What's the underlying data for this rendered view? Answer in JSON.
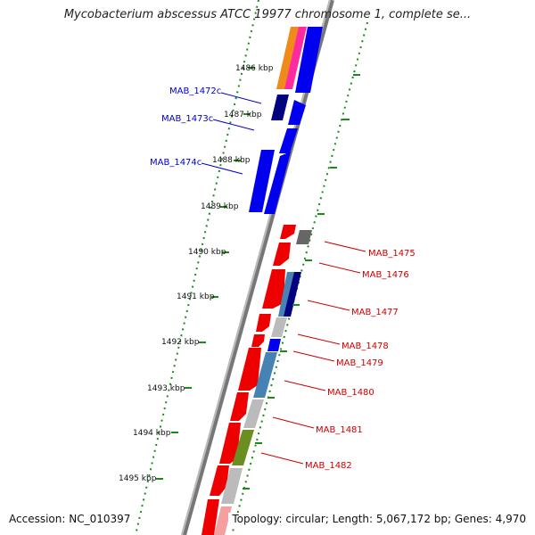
{
  "title": "Mycobacterium abscessus ATCC 19977 chromosome 1, complete se...",
  "footer": {
    "accession": "Accession: NC_010397",
    "summary": "Topology: circular; Length: 5,067,172 bp; Genes: 4,970"
  },
  "ticks": [
    "1486 kbp",
    "1487 kbp",
    "1488 kbp",
    "1489 kbp",
    "1490 kbp",
    "1491 kbp",
    "1492 kbp",
    "1493 kbp",
    "1494 kbp",
    "1495 kbp"
  ],
  "genes_left": [
    "MAB_1472c",
    "MAB_1473c",
    "MAB_1474c"
  ],
  "genes_right": [
    "MAB_1475",
    "MAB_1476",
    "MAB_1477",
    "MAB_1478",
    "MAB_1479",
    "MAB_1480",
    "MAB_1481",
    "MAB_1482"
  ],
  "colors": {
    "reverse_label": "#0000cc",
    "forward_label": "#cc0000",
    "tick": "#1a8a1a",
    "backbone": "#888888"
  }
}
